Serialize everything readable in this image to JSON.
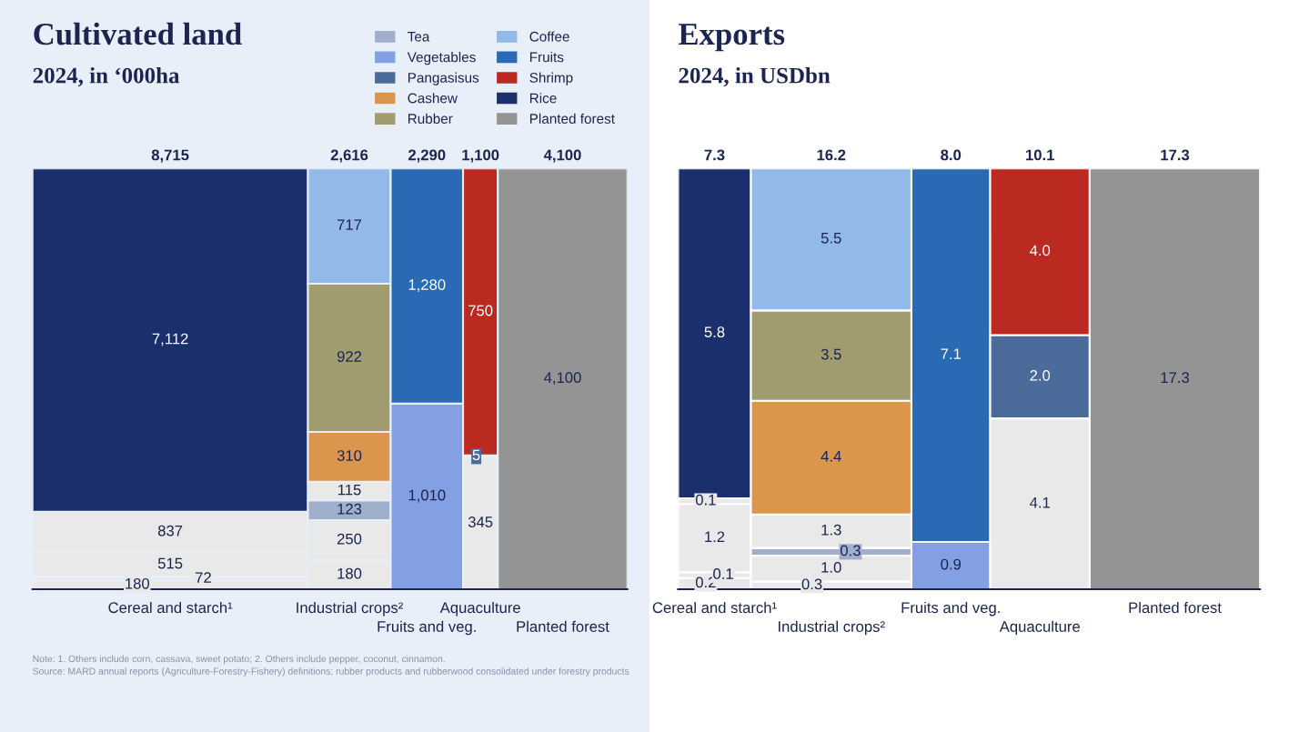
{
  "chart_data": [
    {
      "type": "other",
      "title": "Cultivated land",
      "subtitle": "2024, in ‘000ha",
      "categories": [
        "Cereal and starch¹",
        "Industrial crops²",
        "Fruits and veg.",
        "Aquaculture",
        "Planted forest"
      ],
      "totals": [
        "8,715",
        "2,616",
        "2,290",
        "1,100",
        "4,100"
      ],
      "legend": "top right",
      "data_labels": true,
      "series": [
        {
          "color": "#e9e9e9",
          "values": [
            180,
            180,
            null,
            345,
            null
          ],
          "value_labels": [
            "180",
            "180",
            null,
            "345",
            null
          ]
        },
        {
          "color": "#e9e9e9",
          "values": [
            72,
            250,
            null,
            null,
            null
          ],
          "value_labels": [
            "72",
            "250",
            null,
            null,
            null
          ]
        },
        {
          "color": "#e9e9e9",
          "values": [
            515,
            null,
            null,
            null,
            null
          ],
          "value_labels": [
            "515",
            null,
            null,
            null,
            null
          ]
        },
        {
          "name": "Tea",
          "color": "#a0b0cc",
          "values": [
            null,
            123,
            null,
            null,
            null
          ],
          "value_labels": [
            null,
            "123",
            null,
            null,
            null
          ]
        },
        {
          "color": "#e9e9e9",
          "values": [
            837,
            115,
            null,
            null,
            null
          ],
          "value_labels": [
            "837",
            "115",
            null,
            null,
            null
          ]
        },
        {
          "name": "Vegetables",
          "color": "#82a0e3",
          "values": [
            null,
            null,
            1010,
            null,
            null
          ],
          "value_labels": [
            null,
            null,
            "1,010",
            null,
            null
          ]
        },
        {
          "name": "Pangasisus",
          "color": "#4b6b9a",
          "values": [
            null,
            null,
            null,
            5,
            null
          ],
          "value_labels": [
            null,
            null,
            null,
            "5",
            null
          ]
        },
        {
          "name": "Cashew",
          "color": "#dc954c",
          "values": [
            null,
            310,
            null,
            null,
            null
          ],
          "value_labels": [
            null,
            "310",
            null,
            null,
            null
          ]
        },
        {
          "name": "Rubber",
          "color": "#a19b70",
          "values": [
            null,
            922,
            null,
            null,
            null
          ],
          "value_labels": [
            null,
            "922",
            null,
            null,
            null
          ]
        },
        {
          "name": "Coffee",
          "color": "#92b9e8",
          "values": [
            null,
            717,
            null,
            null,
            null
          ],
          "value_labels": [
            null,
            "717",
            null,
            null,
            null
          ]
        },
        {
          "name": "Fruits",
          "color": "#2a6ab5",
          "values": [
            null,
            null,
            1280,
            null,
            null
          ],
          "value_labels": [
            null,
            null,
            "1,280",
            null,
            null
          ]
        },
        {
          "name": "Shrimp",
          "color": "#bb2a20",
          "values": [
            null,
            null,
            null,
            750,
            null
          ],
          "value_labels": [
            null,
            null,
            null,
            "750",
            null
          ]
        },
        {
          "name": "Rice",
          "color": "#1b2f6e",
          "values": [
            7112,
            null,
            null,
            null,
            null
          ],
          "value_labels": [
            "7,112",
            null,
            null,
            null,
            null
          ]
        },
        {
          "name": "Planted forest",
          "color": "#949494",
          "values": [
            null,
            null,
            null,
            null,
            4100
          ],
          "value_labels": [
            null,
            null,
            null,
            null,
            "4,100"
          ]
        }
      ],
      "annotations": [
        "Note: 1. Others include corn, cassava, sweet potato; 2. Others include pepper, coconut, cinnamon.",
        "Source: MARD annual reports (Agriculture-Forestry-Fishery) definitions; rubber products and rubberwood consolidated under forestry products"
      ]
    },
    {
      "type": "other",
      "title": "Exports",
      "subtitle": "2024, in USDbn",
      "categories": [
        "Cereal and starch¹",
        "Industrial crops²",
        "Fruits and veg.",
        "Aquaculture",
        "Planted forest"
      ],
      "totals": [
        "7.3",
        "16.2",
        "8.0",
        "10.1",
        "17.3"
      ],
      "data_labels": true,
      "series": [
        {
          "color": "#e9e9e9",
          "values": [
            0.2,
            0.3,
            null,
            4.1,
            null
          ],
          "value_labels": [
            "0.2",
            "0.3",
            null,
            "4.1",
            null
          ]
        },
        {
          "color": "#e9e9e9",
          "values": [
            0.1,
            1.0,
            null,
            null,
            null
          ],
          "value_labels": [
            "0.1",
            "1.0",
            null,
            null,
            null
          ]
        },
        {
          "color": "#e9e9e9",
          "values": [
            1.2,
            null,
            null,
            null,
            null
          ],
          "value_labels": [
            "1.2",
            null,
            null,
            null,
            null
          ]
        },
        {
          "color": "#a0b0cc",
          "values": [
            null,
            0.3,
            null,
            null,
            null
          ],
          "value_labels": [
            null,
            "0.3",
            null,
            null,
            null
          ]
        },
        {
          "color": "#e9e9e9",
          "values": [
            0.1,
            1.3,
            null,
            null,
            null
          ],
          "value_labels": [
            "0.1",
            "1.3",
            null,
            null,
            null
          ]
        },
        {
          "color": "#82a0e3",
          "values": [
            null,
            null,
            0.9,
            null,
            null
          ],
          "value_labels": [
            null,
            null,
            "0.9",
            null,
            null
          ]
        },
        {
          "color": "#4b6b9a",
          "values": [
            null,
            null,
            null,
            2.0,
            null
          ],
          "value_labels": [
            null,
            null,
            null,
            "2.0",
            null
          ]
        },
        {
          "color": "#dc954c",
          "values": [
            null,
            4.4,
            null,
            null,
            null
          ],
          "value_labels": [
            null,
            "4.4",
            null,
            null,
            null
          ]
        },
        {
          "color": "#a19b70",
          "values": [
            null,
            3.5,
            null,
            null,
            null
          ],
          "value_labels": [
            null,
            "3.5",
            null,
            null,
            null
          ]
        },
        {
          "color": "#92b9e8",
          "values": [
            null,
            5.5,
            null,
            null,
            null
          ],
          "value_labels": [
            null,
            "5.5",
            null,
            null,
            null
          ]
        },
        {
          "color": "#2a6ab5",
          "values": [
            null,
            null,
            7.1,
            null,
            null
          ],
          "value_labels": [
            null,
            null,
            "7.1",
            null,
            null
          ]
        },
        {
          "color": "#bb2a20",
          "values": [
            null,
            null,
            null,
            4.0,
            null
          ],
          "value_labels": [
            null,
            null,
            null,
            "4.0",
            null
          ]
        },
        {
          "color": "#1b2f6e",
          "values": [
            5.8,
            null,
            null,
            null,
            null
          ],
          "value_labels": [
            "5.8",
            null,
            null,
            null,
            null
          ]
        },
        {
          "color": "#949494",
          "values": [
            null,
            null,
            null,
            null,
            17.3
          ],
          "value_labels": [
            null,
            null,
            null,
            null,
            "17.3"
          ]
        }
      ]
    }
  ]
}
